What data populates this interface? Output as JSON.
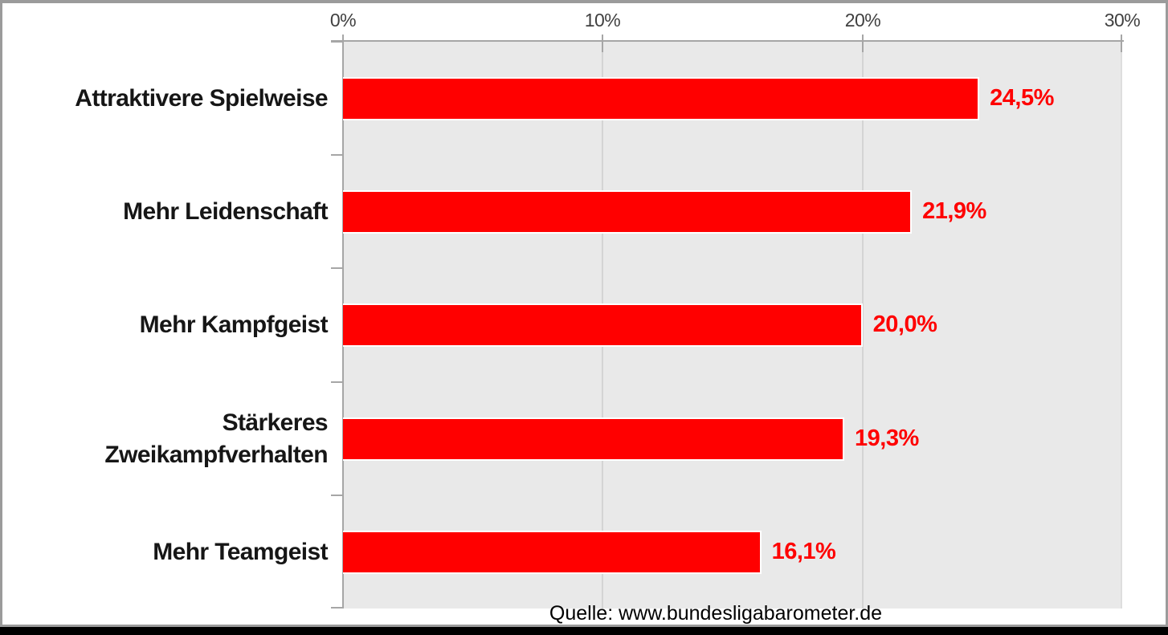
{
  "chart_data": {
    "type": "bar",
    "orientation": "horizontal",
    "title": "",
    "xlabel": "",
    "ylabel": "",
    "xlim": [
      0,
      30
    ],
    "grid": "vertical gridlines at 10% and 20%",
    "legend": "none",
    "bar_color": "#ff0000",
    "plot_background": "#e9e9e9",
    "categories": [
      "Attraktivere Spielweise",
      "Mehr Leidenschaft",
      "Mehr Kampfgeist",
      "Stärkeres\nZweikampfverhalten",
      "Mehr Teamgeist"
    ],
    "values": [
      24.5,
      21.9,
      20.0,
      19.3,
      16.1
    ],
    "value_labels": [
      "24,5%",
      "21,9%",
      "20,0%",
      "19,3%",
      "16,1%"
    ],
    "x_ticks": [
      "0%",
      "10%",
      "20%",
      "30%"
    ],
    "source": "Quelle: www.bundesligabarometer.de"
  }
}
